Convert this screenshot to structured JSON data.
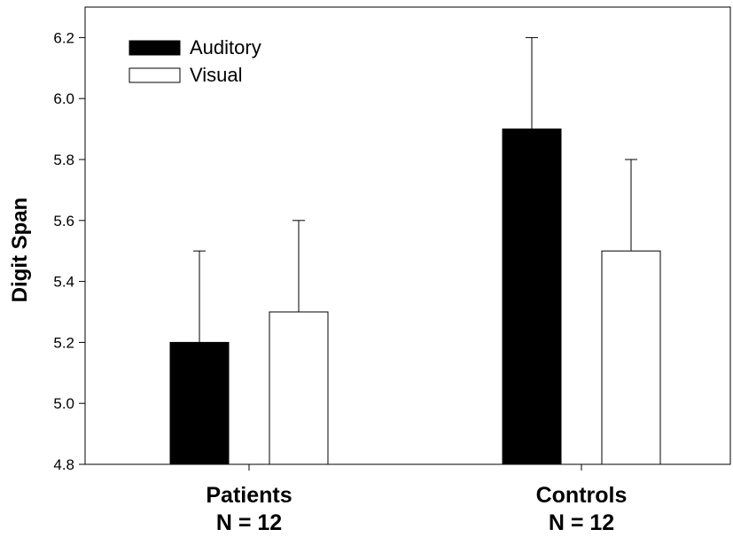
{
  "chart_data": {
    "type": "bar",
    "ylabel": "Digit Span",
    "xlabel": "",
    "ylim": [
      4.8,
      6.3
    ],
    "yticks": [
      4.8,
      5.0,
      5.2,
      5.4,
      5.6,
      5.8,
      6.0,
      6.2
    ],
    "ytick_labels": [
      "4.8",
      "5.0",
      "5.2",
      "5.4",
      "5.6",
      "5.8",
      "6.0",
      "6.2"
    ],
    "categories": [
      {
        "line1": "Patients",
        "line2": "N = 12"
      },
      {
        "line1": "Controls",
        "line2": "N = 12"
      }
    ],
    "series": [
      {
        "name": "Auditory",
        "color": "#000000",
        "values": [
          5.2,
          5.9
        ],
        "error_upper": [
          5.5,
          6.2
        ]
      },
      {
        "name": "Visual",
        "color": "#ffffff",
        "values": [
          5.3,
          5.5
        ],
        "error_upper": [
          5.6,
          5.8
        ]
      }
    ],
    "legend_position": "top-left",
    "grid": false
  }
}
